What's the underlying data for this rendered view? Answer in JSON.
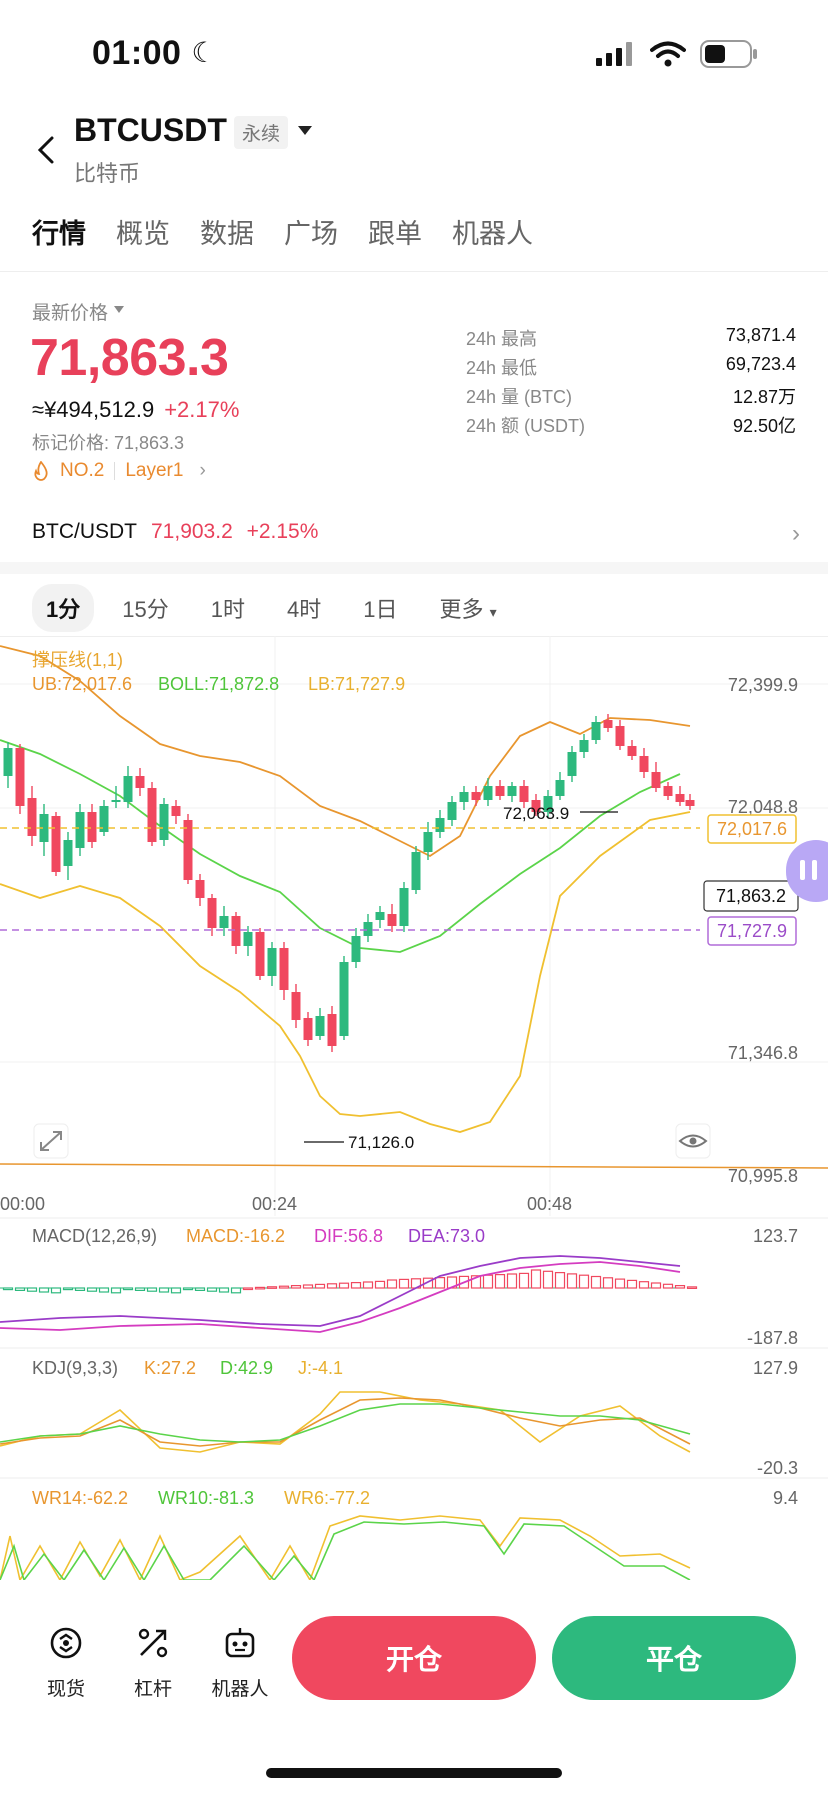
{
  "status": {
    "time": "01:00"
  },
  "header": {
    "symbol": "BTCUSDT",
    "tag": "永续",
    "subname": "比特币"
  },
  "tabs": [
    "行情",
    "概览",
    "数据",
    "广场",
    "跟单",
    "机器人"
  ],
  "price": {
    "latest_label": "最新价格",
    "last": "71,863.3",
    "cny": "≈¥494,512.9",
    "change": "+2.17%",
    "mark": "标记价格: 71,863.3",
    "rank": "NO.2",
    "sector": "Layer1"
  },
  "stats": [
    {
      "label": "24h  最高",
      "value": "73,871.4"
    },
    {
      "label": "24h  最低",
      "value": "69,723.4"
    },
    {
      "label": "24h  量 (BTC)",
      "value": "12.87万"
    },
    {
      "label": "24h  额 (USDT)",
      "value": "92.50亿"
    }
  ],
  "spot": {
    "pair": "BTC/USDT",
    "price": "71,903.2",
    "change": "+2.15%"
  },
  "intervals": [
    "1分",
    "15分",
    "1时",
    "4时",
    "1日",
    "更多"
  ],
  "indicators": {
    "sr_title": "撑压线(1,1)",
    "ub": "UB:72,017.6",
    "boll": "BOLL:71,872.8",
    "lb": "LB:71,727.9",
    "macd_title": "MACD(12,26,9)",
    "macd": "MACD:-16.2",
    "dif": "DIF:56.8",
    "dea": "DEA:73.0",
    "kdj_title": "KDJ(9,3,3)",
    "k": "K:27.2",
    "d": "D:42.9",
    "j": "J:-4.1",
    "wr14": "WR14:-62.2",
    "wr10": "WR10:-81.3",
    "wr6": "WR6:-77.2"
  },
  "chart_data": {
    "type": "candlestick",
    "price_axis": [
      "72,399.9",
      "72,048.8",
      "71,346.8",
      "70,995.8"
    ],
    "time_axis": [
      "00:00",
      "00:24",
      "00:48"
    ],
    "price_tags": {
      "ub": "72,017.6",
      "last": "71,863.2",
      "lb": "71,727.9"
    },
    "annotations": {
      "high": "72,063.9",
      "low": "71,126.0"
    },
    "macd_axis": [
      "123.7",
      "-187.8"
    ],
    "kdj_axis": [
      "127.9",
      "-20.3"
    ],
    "wr_axis": [
      "9.4"
    ],
    "colors": {
      "up": "#2db97e",
      "down": "#f0485f",
      "ub": "#e8962f",
      "mid": "#5bd44a",
      "lb": "#f0c030",
      "macd_dif": "#d43cc0",
      "macd_dea": "#9a3cc8"
    }
  },
  "bottom": {
    "spot": "现货",
    "lever": "杠杆",
    "robot": "机器人",
    "open": "开仓",
    "close": "平仓"
  }
}
